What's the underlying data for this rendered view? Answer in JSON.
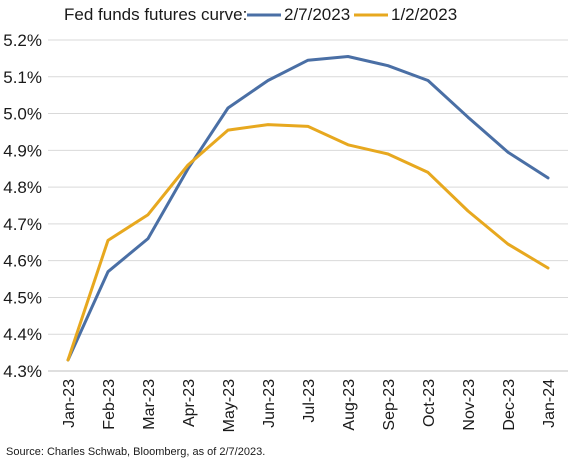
{
  "chart_data": {
    "type": "line",
    "title": "Fed funds futures curve:",
    "categories": [
      "Jan-23",
      "Feb-23",
      "Mar-23",
      "Apr-23",
      "May-23",
      "Jun-23",
      "Jul-23",
      "Aug-23",
      "Sep-23",
      "Oct-23",
      "Nov-23",
      "Dec-23",
      "Jan-24"
    ],
    "series": [
      {
        "name": "2/7/2023",
        "color": "#4a6fa5",
        "values": [
          4.33,
          4.57,
          4.66,
          4.85,
          5.015,
          5.09,
          5.145,
          5.155,
          5.13,
          5.09,
          4.99,
          4.895,
          4.825
        ]
      },
      {
        "name": "1/2/2023",
        "color": "#e7a81f",
        "values": [
          4.33,
          4.655,
          4.725,
          4.86,
          4.955,
          4.97,
          4.965,
          4.915,
          4.89,
          4.84,
          4.735,
          4.645,
          4.58
        ]
      }
    ],
    "ylim": [
      4.3,
      5.2
    ],
    "yticks": [
      4.3,
      4.4,
      4.5,
      4.6,
      4.7,
      4.8,
      4.9,
      5.0,
      5.1,
      5.2
    ],
    "ytick_labels": [
      "4.3%",
      "4.4%",
      "4.5%",
      "4.6%",
      "4.7%",
      "4.8%",
      "4.9%",
      "5.0%",
      "5.1%",
      "5.2%"
    ],
    "grid": true,
    "legend_position": "top"
  },
  "source": "Source: Charles Schwab, Bloomberg, as of 2/7/2023."
}
